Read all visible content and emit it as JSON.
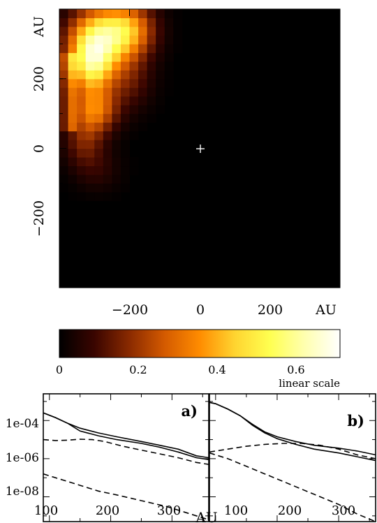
{
  "chart_data": [
    {
      "type": "heatmap",
      "title": "",
      "xlabel": "AU",
      "ylabel": "AU",
      "xlim": [
        -400,
        400
      ],
      "ylim": [
        -400,
        400
      ],
      "x_ticks": [
        "−200",
        "0",
        "200"
      ],
      "y_ticks": [
        "−200",
        "0",
        "200"
      ],
      "marker": "+",
      "marker_position_au": [
        0,
        0
      ],
      "grid": false,
      "colorbar": {
        "ticks": [
          "0",
          "0.2",
          "0.4",
          "0.6"
        ],
        "range": [
          0,
          0.71
        ],
        "label": "linear scale",
        "colormap": [
          "#000000",
          "#3a0500",
          "#8a2a00",
          "#d45a00",
          "#ff8c00",
          "#ffd430",
          "#ffff50",
          "#ffffb0",
          "#ffffff"
        ]
      }
    },
    {
      "type": "line",
      "panel_label": "a)",
      "xlabel": "AU",
      "x_ticks": [
        "100",
        "200",
        "300"
      ],
      "y_ticks": [
        "1e-04",
        "1e-06",
        "1e-08"
      ],
      "xlim": [
        90,
        360
      ],
      "ylim_log10": [
        -9.3,
        -2.6
      ],
      "y_scale": "log",
      "series": [
        {
          "style": "solid",
          "x": [
            90,
            110,
            130,
            150,
            180,
            210,
            250,
            280,
            310,
            340,
            360
          ],
          "y_log10": [
            -3.6,
            -3.85,
            -4.15,
            -4.4,
            -4.65,
            -4.85,
            -5.1,
            -5.3,
            -5.5,
            -5.85,
            -5.95
          ]
        },
        {
          "style": "solid",
          "x": [
            90,
            110,
            130,
            150,
            180,
            210,
            250,
            280,
            310,
            340,
            360
          ],
          "y_log10": [
            -3.6,
            -3.85,
            -4.15,
            -4.55,
            -4.8,
            -5.0,
            -5.2,
            -5.4,
            -5.65,
            -5.95,
            -6.05
          ]
        },
        {
          "style": "dashed",
          "x": [
            90,
            110,
            130,
            150,
            170,
            190,
            220,
            250,
            280,
            310,
            340,
            360
          ],
          "y_log10": [
            -5.0,
            -5.05,
            -5.03,
            -4.98,
            -5.0,
            -5.1,
            -5.35,
            -5.55,
            -5.75,
            -5.95,
            -6.2,
            -6.3
          ]
        },
        {
          "style": "dashed",
          "x": [
            90,
            110,
            130,
            150,
            180,
            210,
            250,
            290,
            320,
            340,
            360
          ],
          "y_log10": [
            -6.8,
            -7.0,
            -7.2,
            -7.4,
            -7.7,
            -7.9,
            -8.2,
            -8.5,
            -8.8,
            -9.0,
            -9.2
          ]
        }
      ]
    },
    {
      "type": "line",
      "panel_label": "b)",
      "xlabel": "AU",
      "x_ticks": [
        "100",
        "200",
        "300"
      ],
      "xlim": [
        90,
        360
      ],
      "ylim_log10": [
        -9.3,
        -2.6
      ],
      "y_scale": "log",
      "series": [
        {
          "style": "solid",
          "x": [
            90,
            100,
            120,
            140,
            160,
            180,
            200,
            230,
            260,
            300,
            330,
            360
          ],
          "y_log10": [
            -3.05,
            -3.12,
            -3.4,
            -3.75,
            -4.2,
            -4.6,
            -4.85,
            -5.1,
            -5.3,
            -5.45,
            -5.6,
            -5.8
          ]
        },
        {
          "style": "solid",
          "x": [
            90,
            100,
            120,
            140,
            160,
            180,
            200,
            230,
            260,
            300,
            330,
            360
          ],
          "y_log10": [
            -3.05,
            -3.12,
            -3.4,
            -3.75,
            -4.25,
            -4.65,
            -4.95,
            -5.25,
            -5.5,
            -5.7,
            -5.9,
            -6.1
          ]
        },
        {
          "style": "dashed",
          "x": [
            90,
            120,
            150,
            180,
            210,
            240,
            270,
            300,
            330,
            360
          ],
          "y_log10": [
            -5.65,
            -5.5,
            -5.35,
            -5.25,
            -5.2,
            -5.2,
            -5.3,
            -5.5,
            -5.8,
            -6.0
          ]
        },
        {
          "style": "dashed",
          "x": [
            90,
            120,
            150,
            180,
            210,
            240,
            270,
            300,
            330,
            360
          ],
          "y_log10": [
            -5.7,
            -6.0,
            -6.4,
            -6.8,
            -7.2,
            -7.6,
            -8.0,
            -8.4,
            -8.9,
            -9.3
          ]
        }
      ]
    }
  ]
}
